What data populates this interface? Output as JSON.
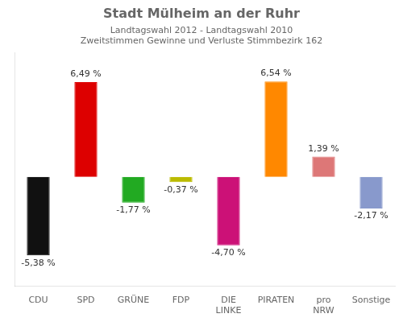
{
  "chart_data": {
    "type": "bar",
    "title": "Stadt Mülheim an der Ruhr",
    "subtitle": [
      "Landtagswahl 2012 - Landtagswahl 2010",
      "Zweitstimmen Gewinne und Verluste Stimmbezirk 162"
    ],
    "categories": [
      "CDU",
      "SPD",
      "GRÜNE",
      "FDP",
      "DIE\nLINKE",
      "PIRATEN",
      "pro\nNRW",
      "Sonstige"
    ],
    "values": [
      -5.38,
      6.49,
      -1.77,
      -0.37,
      -4.7,
      6.54,
      1.39,
      -2.17
    ],
    "value_labels": [
      "-5,38 %",
      "6,49 %",
      "-1,77 %",
      "-0,37 %",
      "-4,70 %",
      "6,54 %",
      "1,39 %",
      "-2,17 %"
    ],
    "colors": [
      "#111111",
      "#dd0000",
      "#22aa22",
      "#bbbb00",
      "#cc1177",
      "#ff8800",
      "#dd7777",
      "#8899cc"
    ],
    "ylim": [
      -7.5,
      8.5
    ],
    "grid": false,
    "data_labels": true,
    "tick_labels": "x"
  }
}
